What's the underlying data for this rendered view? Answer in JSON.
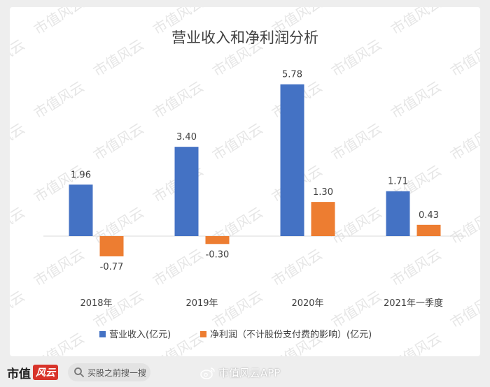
{
  "chart_data": {
    "type": "bar",
    "title": "营业收入和净利润分析",
    "categories": [
      "2018年",
      "2019年",
      "2020年",
      "2021年一季度"
    ],
    "series": [
      {
        "name": "营业收入(亿元)",
        "color": "#4472c4",
        "values": [
          1.96,
          3.4,
          5.78,
          1.71
        ]
      },
      {
        "name": "净利润（不计股份支付费的影响）(亿元)",
        "color": "#ed7d31",
        "values": [
          -0.77,
          -0.3,
          1.3,
          0.43
        ]
      }
    ],
    "value_labels": [
      [
        "1.96",
        "3.40",
        "5.78",
        "1.71"
      ],
      [
        "-0.77",
        "-0.30",
        "1.30",
        "0.43"
      ]
    ],
    "ylim": [
      -1.2,
      6.5
    ],
    "grid": false,
    "legend_position": "bottom"
  },
  "watermark": "市值风云",
  "footer": {
    "brand_name": "市值",
    "brand_mark": "风云",
    "search_placeholder": "买股之前搜一搜",
    "weibo_text": "市值风云APP"
  }
}
